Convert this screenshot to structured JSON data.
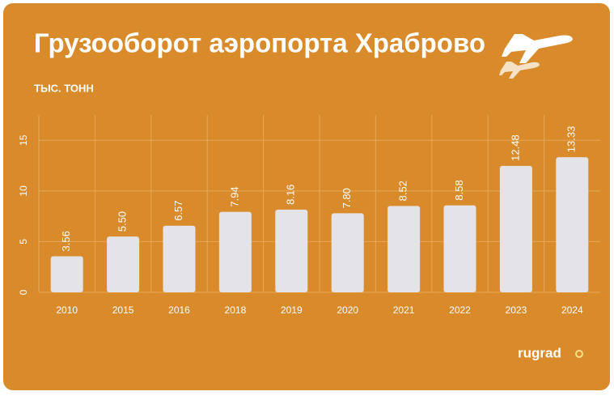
{
  "chart_data": {
    "type": "bar",
    "title": "Грузооборот аэропорта Храброво",
    "subtitle": "ТЫС. ТОНН",
    "categories": [
      "2010",
      "2015",
      "2016",
      "2018",
      "2019",
      "2020",
      "2021",
      "2022",
      "2023",
      "2024"
    ],
    "values": [
      3.56,
      5.5,
      6.57,
      7.94,
      8.16,
      7.8,
      8.52,
      8.58,
      12.48,
      13.33
    ],
    "value_labels": [
      "3.56",
      "5.50",
      "6.57",
      "7.94",
      "8.16",
      "7.80",
      "8.52",
      "8.58",
      "12.48",
      "13.33"
    ],
    "color": "#e4e3e8",
    "ylim": [
      0,
      17.5
    ],
    "yticks": [
      0,
      5,
      10,
      15
    ],
    "grid": true,
    "logo": "rugrad"
  }
}
